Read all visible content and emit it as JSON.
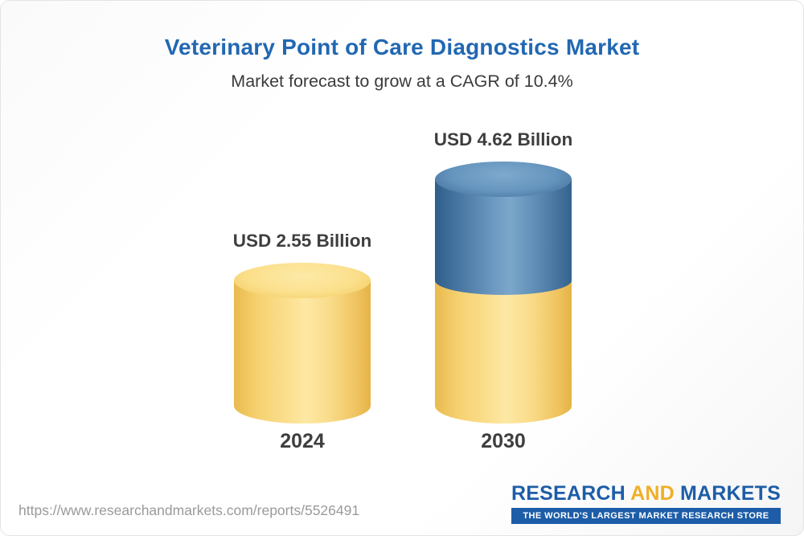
{
  "header": {
    "title": "Veterinary Point of Care Diagnostics Market",
    "subtitle": "Market forecast to grow at a CAGR of 10.4%"
  },
  "chart_data": {
    "type": "bar",
    "variant": "3d-cylinder-stacked",
    "title": "Veterinary Point of Care Diagnostics Market",
    "subtitle": "Market forecast to grow at a CAGR of 10.4%",
    "categories": [
      "2024",
      "2030"
    ],
    "values": [
      2.55,
      4.62
    ],
    "value_labels": [
      "USD 2.55 Billion",
      "USD 4.62 Billion"
    ],
    "unit": "USD Billion",
    "cagr_pct": 10.4,
    "ylim": [
      0,
      4.62
    ],
    "grid": false,
    "legend": "none",
    "colors": {
      "base_segment": "#F6CF6B",
      "growth_segment": "#44739F"
    },
    "stacking_note": "2030 bar shows the 2024 base value in yellow with incremental growth to 4.62 in blue on top"
  },
  "footer": {
    "url": "https://www.researchandmarkets.com/reports/5526491",
    "logo": {
      "word_research": "RESEARCH",
      "word_and": "AND",
      "word_markets": "MARKETS",
      "tagline": "THE WORLD'S LARGEST MARKET RESEARCH STORE",
      "brand_blue": "#1D5DA8",
      "brand_gold": "#EFAF26"
    }
  }
}
